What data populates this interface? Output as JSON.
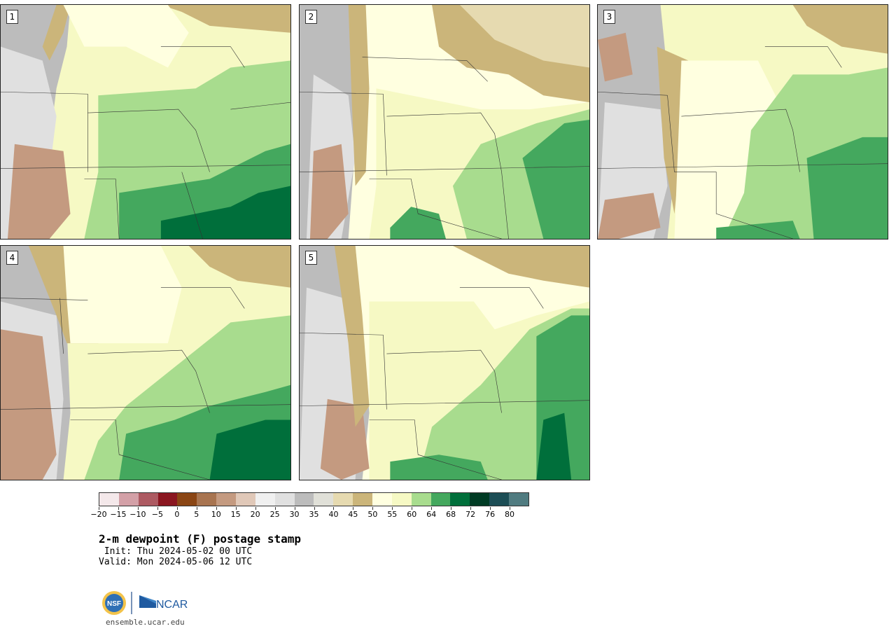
{
  "figure": {
    "title": "2-m dewpoint (F) postage stamp",
    "init_line": " Init: Thu 2024-05-02 00 UTC",
    "valid_line": "Valid: Mon 2024-05-06 12 UTC",
    "website": "ensemble.ucar.edu",
    "logo_nsf_text": "NSF",
    "logo_ncar_text": "NCAR"
  },
  "panels": [
    {
      "label": "1"
    },
    {
      "label": "2"
    },
    {
      "label": "3"
    },
    {
      "label": "4"
    },
    {
      "label": "5"
    }
  ],
  "colorbar": {
    "ticks": [
      "−20",
      "−15",
      "−10",
      "−5",
      "0",
      "5",
      "10",
      "15",
      "20",
      "25",
      "30",
      "35",
      "40",
      "45",
      "50",
      "55",
      "60",
      "64",
      "68",
      "72",
      "76",
      "80"
    ],
    "colors": [
      "#f4e8ea",
      "#d3a0a7",
      "#ad5a62",
      "#8a1620",
      "#8a4514",
      "#a87450",
      "#c49a80",
      "#e0c8b8",
      "#f0f0f0",
      "#e0e0e0",
      "#bcbcbc",
      "#e0e0d8",
      "#e6dab0",
      "#cbb57a",
      "#ffffe0",
      "#f6f9c4",
      "#a8dc8e",
      "#44a85e",
      "#006f3b",
      "#003b24",
      "#1c4d55",
      "#507b80"
    ]
  },
  "chart_data": {
    "type": "heatmap",
    "variable": "2-m dewpoint",
    "units": "F",
    "colorbar_levels": [
      -20,
      -15,
      -10,
      -5,
      0,
      5,
      10,
      15,
      20,
      25,
      30,
      35,
      40,
      45,
      50,
      55,
      60,
      64,
      68,
      72,
      76,
      80
    ],
    "members": [
      "1",
      "2",
      "3",
      "4",
      "5"
    ]
  }
}
